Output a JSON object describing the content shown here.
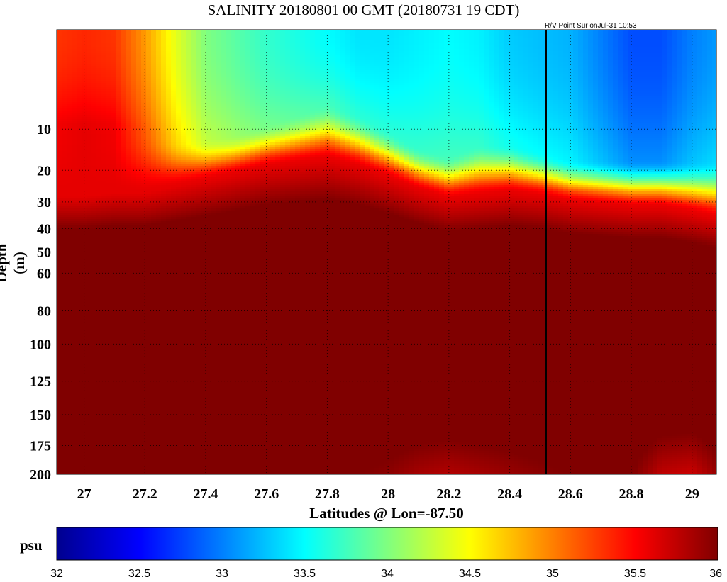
{
  "chart_data": {
    "type": "heatmap",
    "title": "SALINITY 20180801 00 GMT (20180731 19 CDT)",
    "annotation": "R/V Point Sur onJul-31 10:53",
    "xlabel": "Latitudes @ Lon=-87.50",
    "ylabel": "Depth (m)",
    "xlim": [
      26.91,
      29.08
    ],
    "ylim": [
      200,
      0
    ],
    "y_scale": "sqrt",
    "x_ticks": [
      "27",
      "27.2",
      "27.4",
      "27.6",
      "27.8",
      "28",
      "28.2",
      "28.4",
      "28.6",
      "28.8",
      "29"
    ],
    "y_ticks": [
      "10",
      "20",
      "30",
      "40",
      "50",
      "60",
      "80",
      "100",
      "125",
      "150",
      "175",
      "200"
    ],
    "grid": true,
    "marker_line_latitude": 28.52,
    "colorbar": {
      "label": "psu",
      "range": [
        32,
        36
      ],
      "colormap": "jet",
      "ticks": [
        "32",
        "32.5",
        "33",
        "33.5",
        "34",
        "34.5",
        "35",
        "35.5",
        "36"
      ]
    },
    "salinity_field": {
      "latitudes": [
        26.91,
        27.0,
        27.1,
        27.2,
        27.3,
        27.4,
        27.5,
        27.6,
        27.7,
        27.8,
        27.9,
        28.0,
        28.1,
        28.2,
        28.3,
        28.4,
        28.5,
        28.6,
        28.7,
        28.8,
        28.9,
        29.0,
        29.08
      ],
      "surface_salinity": [
        35.3,
        35.35,
        35.3,
        34.9,
        34.4,
        34.0,
        33.85,
        33.7,
        33.6,
        33.5,
        33.4,
        33.4,
        33.45,
        33.5,
        33.45,
        33.3,
        33.25,
        33.2,
        33.0,
        32.8,
        32.8,
        33.0,
        33.1
      ],
      "freshwater_layer_depth_m": [
        9,
        9,
        9,
        10,
        12,
        12,
        11,
        9,
        7,
        5,
        7,
        10,
        14,
        16,
        13,
        13,
        15,
        17,
        17,
        17,
        17,
        17,
        17
      ],
      "mixed_layer_top_depth_m": [
        28,
        28,
        27,
        27,
        25,
        23,
        21,
        19,
        18,
        17,
        19,
        22,
        26,
        29,
        28,
        27,
        28,
        30,
        31,
        32,
        32,
        34,
        36
      ],
      "deep_salinity": 36.2,
      "bottom_salinity": [
        36.1,
        36.1,
        36.1,
        36.1,
        36.2,
        36.2,
        36.2,
        36.2,
        36.2,
        36.1,
        36.0,
        35.95,
        35.85,
        35.8,
        35.85,
        35.9,
        35.95,
        36.0,
        36.05,
        36.0,
        35.75,
        35.7,
        35.9
      ]
    }
  }
}
